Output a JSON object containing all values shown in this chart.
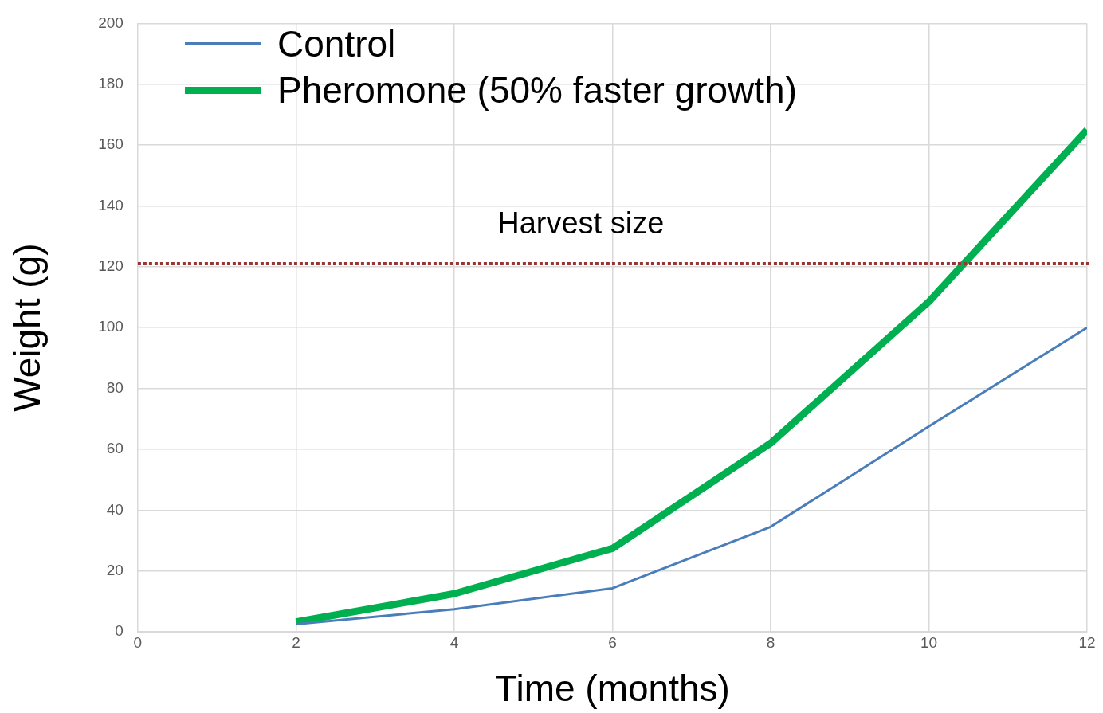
{
  "chart_data": {
    "type": "line",
    "xlabel": "Time (months)",
    "ylabel": "Weight (g)",
    "x": [
      2,
      4,
      6,
      8,
      10,
      12
    ],
    "series": [
      {
        "name": "Control",
        "color": "#4a7ebb",
        "values": [
          2.5,
          7.4,
          14.3,
          34.5,
          67.5,
          100
        ]
      },
      {
        "name": "Pheromone (50% faster growth)",
        "color": "#00b050",
        "values": [
          3.2,
          12.5,
          27.4,
          62,
          108.5,
          165
        ]
      }
    ],
    "xlim": [
      0,
      12
    ],
    "xticks": [
      0,
      2,
      4,
      6,
      8,
      10,
      12
    ],
    "ylim": [
      0,
      200
    ],
    "yticks": [
      0,
      20,
      40,
      60,
      80,
      100,
      120,
      140,
      160,
      180,
      200
    ],
    "ref_lines": [
      {
        "axis": "y",
        "value": 121,
        "label": "Harvest size",
        "color": "#943634",
        "line_style": "dotted"
      }
    ],
    "grid": true,
    "legend": "top left",
    "marker": "none"
  }
}
